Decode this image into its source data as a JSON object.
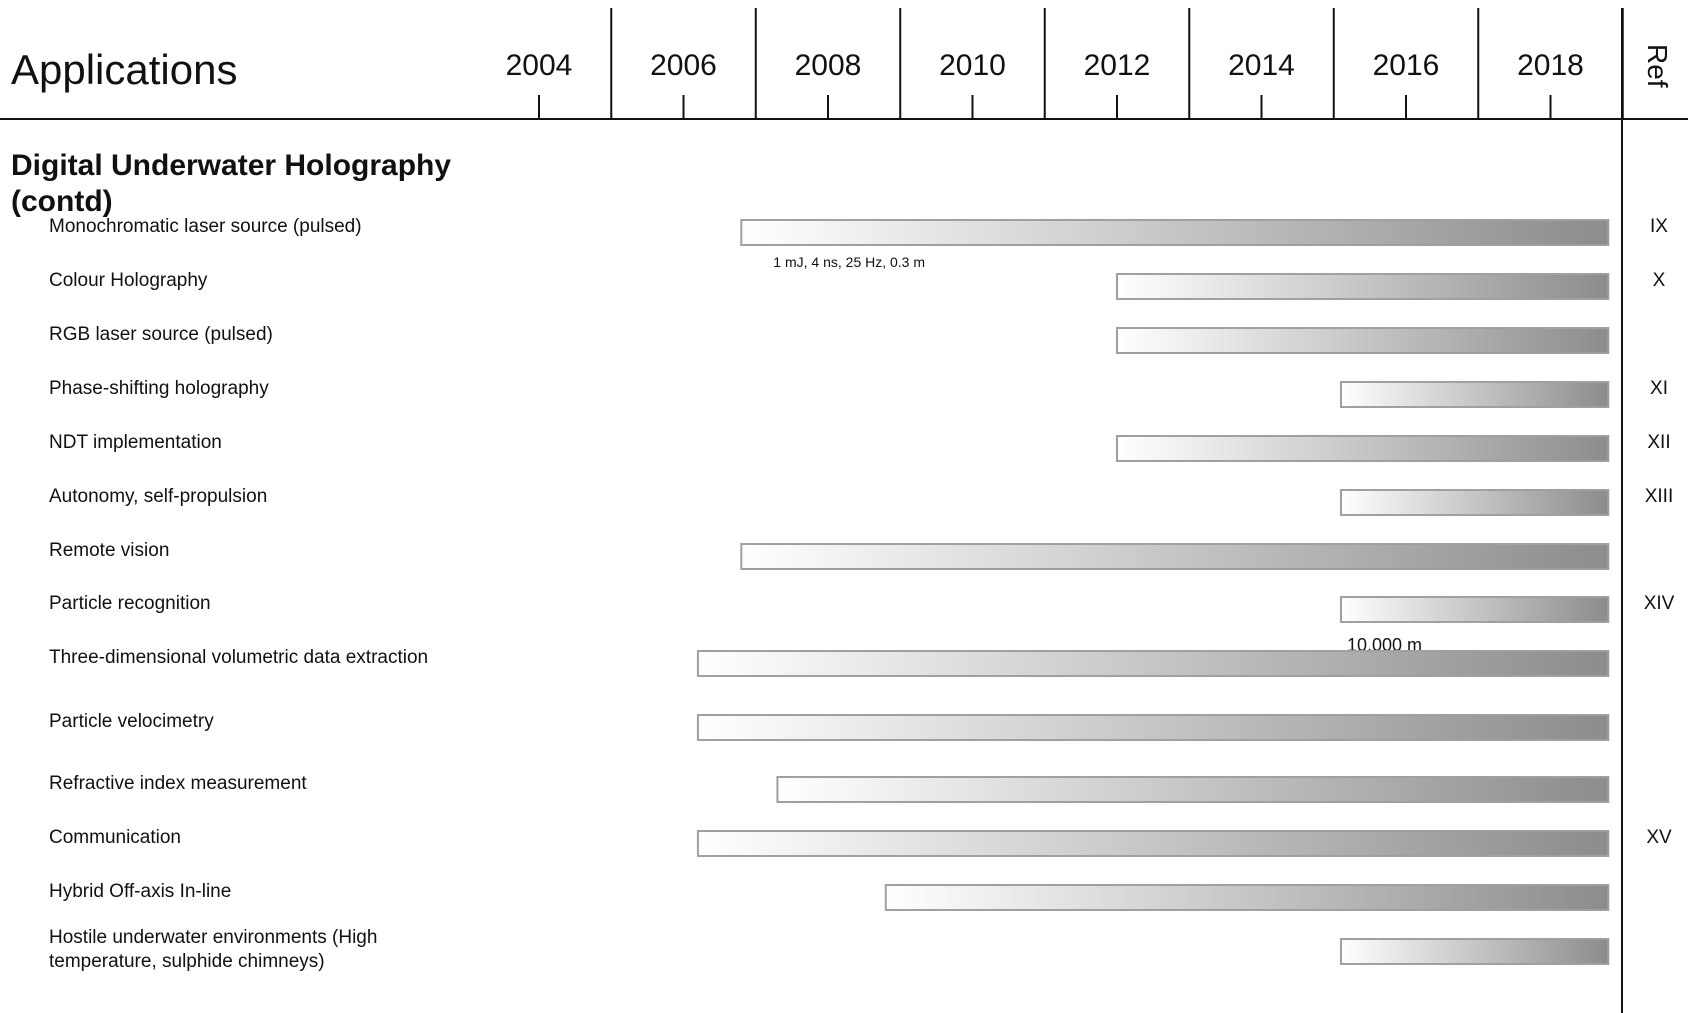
{
  "header": {
    "title": "Applications",
    "ref_label": "Ref"
  },
  "section": {
    "title_line1": "Digital Underwater Holography",
    "title_line2": "(contd)"
  },
  "colors": {
    "bar_start": "#ffffff",
    "bar_end": "#8c8c8c",
    "bar_border": "#a0a0a0",
    "grid": "#111111"
  },
  "chart_data": {
    "type": "bar",
    "x_ticks": [
      "2004",
      "2006",
      "2008",
      "2010",
      "2012",
      "2014",
      "2016",
      "2018"
    ],
    "xlim": [
      2003,
      2019
    ],
    "rows": [
      {
        "label": "Monochromatic laser source (pulsed)",
        "start": 2006.8,
        "end": 2018.8,
        "ref": "IX",
        "note": "1 mJ, 4 ns, 25 Hz, 0.3 m"
      },
      {
        "label": "Colour Holography",
        "start": 2012.0,
        "end": 2018.8,
        "ref": "X",
        "note": ""
      },
      {
        "label": "RGB laser source (pulsed)",
        "start": 2012.0,
        "end": 2018.8,
        "ref": "",
        "note": ""
      },
      {
        "label": "Phase-shifting holography",
        "start": 2015.1,
        "end": 2018.8,
        "ref": "XI",
        "note": ""
      },
      {
        "label": "NDT implementation",
        "start": 2012.0,
        "end": 2018.8,
        "ref": "XII",
        "note": ""
      },
      {
        "label": "Autonomy, self-propulsion",
        "start": 2015.1,
        "end": 2018.8,
        "ref": "XIII",
        "note": ""
      },
      {
        "label": "Remote vision",
        "start": 2006.8,
        "end": 2018.8,
        "ref": "",
        "note": ""
      },
      {
        "label": "Particle recognition",
        "start": 2015.1,
        "end": 2018.8,
        "ref": "XIV",
        "note": "10,000 m"
      },
      {
        "label": "Three-dimensional volumetric data extraction",
        "start": 2006.2,
        "end": 2018.8,
        "ref": "",
        "note": ""
      },
      {
        "label": "Particle velocimetry",
        "start": 2006.2,
        "end": 2018.8,
        "ref": "",
        "note": ""
      },
      {
        "label": "Refractive index measurement",
        "start": 2007.3,
        "end": 2018.8,
        "ref": "",
        "note": ""
      },
      {
        "label": "Communication",
        "start": 2006.2,
        "end": 2018.8,
        "ref": "XV",
        "note": ""
      },
      {
        "label": "Hybrid Off-axis In-line",
        "start": 2008.8,
        "end": 2018.8,
        "ref": "",
        "note": ""
      },
      {
        "label": "Hostile underwater environments (High temperature, sulphide chimneys)",
        "label_line1": "Hostile underwater environments (High",
        "label_line2": "temperature, sulphide chimneys)",
        "start": 2015.1,
        "end": 2018.8,
        "ref": "",
        "note": ""
      }
    ]
  }
}
